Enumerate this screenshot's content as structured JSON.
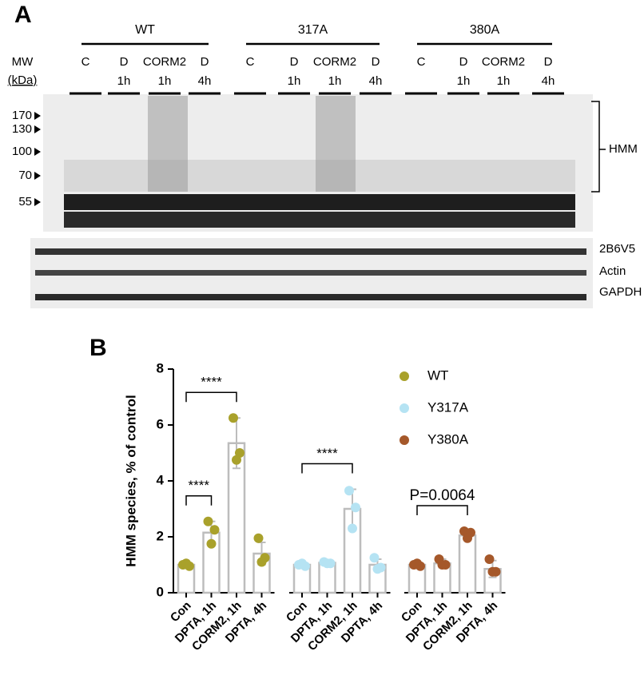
{
  "panel_a": {
    "label": "A",
    "groups": [
      {
        "name": "WT",
        "lanes": [
          [
            "C"
          ],
          [
            "D",
            "1h"
          ],
          [
            "CORM2",
            "1h"
          ],
          [
            "D",
            "4h"
          ]
        ]
      },
      {
        "name": "317A",
        "lanes": [
          [
            "C"
          ],
          [
            "D",
            "1h"
          ],
          [
            "CORM2",
            "1h"
          ],
          [
            "D",
            "4h"
          ]
        ]
      },
      {
        "name": "380A",
        "lanes": [
          [
            "C"
          ],
          [
            "D",
            "1h"
          ],
          [
            "CORM2",
            "1h"
          ],
          [
            "D",
            "4h"
          ]
        ]
      }
    ],
    "mw_title": [
      "MW",
      "(kDa)"
    ],
    "mw_markers": [
      "170",
      "130",
      "100",
      "70",
      "55"
    ],
    "bracket_label": "HMM",
    "lower_labels": [
      "2B6V5",
      "Actin",
      "GAPDH"
    ]
  },
  "chart_data": {
    "type": "bar",
    "label": "B",
    "y_label": "HMM species, % of control",
    "categories": [
      "Con",
      "DPTA, 1h",
      "CORM2, 1h",
      "DPTA, 4h"
    ],
    "ylim": [
      0,
      8
    ],
    "yticks": [
      0,
      2,
      4,
      6,
      8
    ],
    "legend": "upper right",
    "series": [
      {
        "name": "WT",
        "color": "#a9a12b",
        "values": [
          1.0,
          2.15,
          5.35,
          1.4
        ],
        "errors": [
          0.08,
          0.4,
          0.9,
          0.4
        ],
        "points": [
          [
            1.0,
            0.95,
            1.05
          ],
          [
            2.55,
            2.25,
            1.75
          ],
          [
            6.25,
            5.0,
            4.75
          ],
          [
            1.95,
            1.25,
            1.1
          ]
        ],
        "annotations": [
          {
            "text": "****",
            "span": [
              "Con",
              "DPTA, 1h"
            ]
          },
          {
            "text": "****",
            "span": [
              "Con",
              "CORM2, 1h"
            ]
          }
        ]
      },
      {
        "name": "Y317A",
        "color": "#b5e3f3",
        "values": [
          1.0,
          1.07,
          3.0,
          1.0
        ],
        "errors": [
          0.08,
          0.1,
          0.7,
          0.2
        ],
        "points": [
          [
            1.0,
            0.95,
            1.05
          ],
          [
            1.1,
            1.05,
            1.05
          ],
          [
            3.65,
            3.05,
            2.3
          ],
          [
            1.25,
            0.9,
            0.85
          ]
        ],
        "annotations": [
          {
            "text": "****",
            "span": [
              "Con",
              "CORM2, 1h"
            ]
          }
        ]
      },
      {
        "name": "Y380A",
        "color": "#a5582a",
        "values": [
          1.0,
          1.05,
          2.05,
          0.85
        ],
        "errors": [
          0.08,
          0.15,
          0.12,
          0.3
        ],
        "points": [
          [
            1.0,
            0.95,
            1.05
          ],
          [
            1.2,
            1.0,
            1.0
          ],
          [
            2.2,
            2.15,
            1.95
          ],
          [
            1.2,
            0.75,
            0.75
          ]
        ],
        "annotations": [
          {
            "text": "P=0.0064",
            "span": [
              "Con",
              "CORM2, 1h"
            ]
          }
        ]
      }
    ]
  }
}
